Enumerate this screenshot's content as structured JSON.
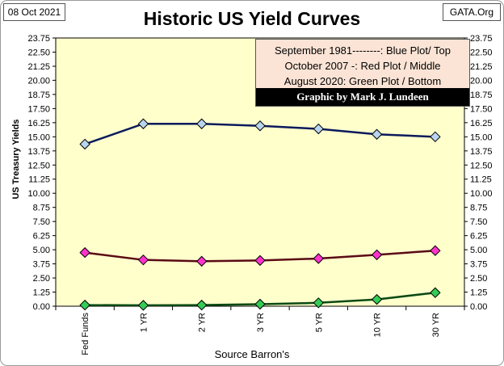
{
  "header": {
    "date": "08 Oct 2021",
    "source": "GATA.Org",
    "title": "Historic US Yield Curves"
  },
  "legend": {
    "lines": [
      "September 1981--------:  Blue Plot/ Top",
      "October 2007  -: Red Plot / Middle",
      "August 2020:  Green Plot / Bottom"
    ],
    "credit": "Graphic by Mark J. Lundeen"
  },
  "chart_data": {
    "type": "line",
    "title": "Historic US Yield Curves",
    "xlabel": "Source Barron's",
    "ylabel": "US Treasury Yields",
    "categories": [
      "Fed Funds",
      "1 YR",
      "2 YR",
      "3 YR",
      "5 YR",
      "10 YR",
      "30 YR"
    ],
    "ylim": [
      0,
      23.75
    ],
    "yticks": [
      "0.00",
      "1.25",
      "2.50",
      "3.75",
      "5.00",
      "6.25",
      "7.50",
      "8.75",
      "10.00",
      "11.25",
      "12.50",
      "13.75",
      "15.00",
      "16.25",
      "17.50",
      "18.75",
      "20.00",
      "21.25",
      "22.50",
      "23.75"
    ],
    "grid": false,
    "secondary_y_axis": true,
    "background": "#ffffcc",
    "series": [
      {
        "values": [
          14.35,
          16.15,
          16.15,
          15.97,
          15.7,
          15.22,
          15.0
        ],
        "line_color": "#0a1a5c",
        "marker_color": "#b8d4f0"
      },
      {
        "values": [
          4.75,
          4.1,
          3.98,
          4.05,
          4.22,
          4.55,
          4.92
        ],
        "line_color": "#5a0a14",
        "marker_color": "#ff33cc"
      },
      {
        "values": [
          0.1,
          0.08,
          0.1,
          0.18,
          0.3,
          0.6,
          1.2
        ],
        "line_color": "#0a4a14",
        "marker_color": "#33cc55"
      }
    ]
  }
}
